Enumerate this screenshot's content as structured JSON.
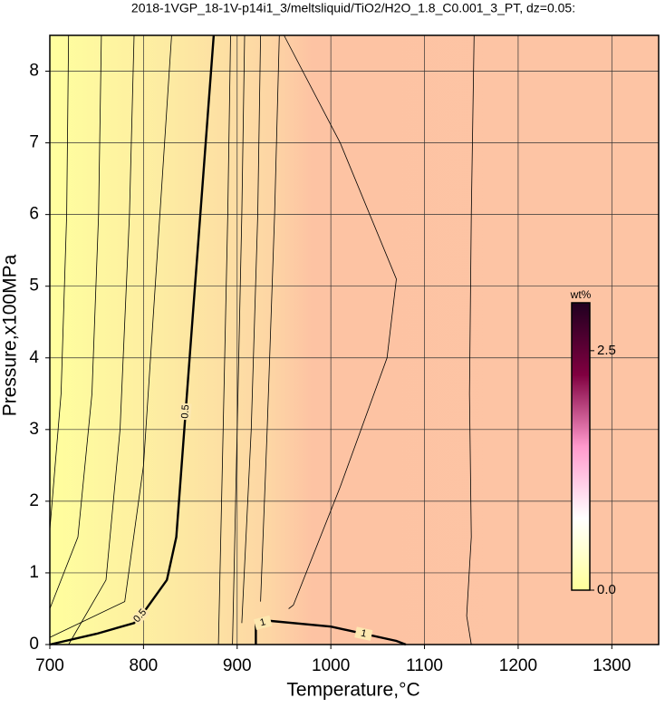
{
  "chart_data": {
    "type": "contour",
    "title": "2018-1VGP_18-1V-p14i1_3/meltsliquid/TiO2/H2O_1.8_C0.001_3_PT, dz=0.05:",
    "x_label": "Temperature,°C",
    "y_label": "Pressure,x100MPa",
    "xlim": [
      700,
      1350
    ],
    "ylim": [
      0,
      8.5
    ],
    "xticks": [
      700,
      800,
      900,
      1000,
      1100,
      1200,
      1300
    ],
    "yticks": [
      0,
      1,
      2,
      3,
      4,
      5,
      6,
      7,
      8
    ],
    "grid": true,
    "line_color": "#000000",
    "contours": [
      {
        "level": 0.1,
        "x": [
          700,
          712,
          718,
          720
        ],
        "y": [
          1.6,
          3.5,
          6,
          8.5
        ]
      },
      {
        "level": 0.2,
        "x": [
          700,
          730,
          745,
          752,
          755
        ],
        "y": [
          0.5,
          1.5,
          3.5,
          6,
          8.5
        ]
      },
      {
        "level": 0.3,
        "x": [
          720,
          760,
          775,
          785,
          790
        ],
        "y": [
          0,
          0.9,
          3,
          6,
          8.5
        ]
      },
      {
        "level": 0.4,
        "x": [
          700,
          780,
          800,
          815,
          830
        ],
        "y": [
          0.1,
          0.6,
          2.5,
          5.5,
          8.5
        ]
      },
      {
        "level": 0.5,
        "bold": true,
        "labeled": true,
        "x": [
          700,
          750,
          790,
          803,
          825,
          835,
          855,
          875
        ],
        "y": [
          0,
          0.15,
          0.3,
          0.5,
          0.9,
          1.5,
          5,
          8.5
        ]
      },
      {
        "level": 0.6,
        "x": [
          880,
          885,
          890,
          893
        ],
        "y": [
          0,
          3,
          6,
          8.5
        ]
      },
      {
        "level": 0.7,
        "x": [
          895,
          900,
          905,
          908
        ],
        "y": [
          0,
          3,
          6,
          8.5
        ]
      },
      {
        "level": 0.8,
        "x": [
          905,
          915,
          922,
          925
        ],
        "y": [
          0.3,
          3,
          6,
          8.5
        ]
      },
      {
        "level": 0.9,
        "x": [
          925,
          932,
          940,
          945
        ],
        "y": [
          0.6,
          3,
          6,
          8.5
        ]
      },
      {
        "level": 1,
        "bold": true,
        "labeled": true,
        "x": [
          920,
          920,
          935,
          1000,
          1070,
          1080
        ],
        "y": [
          0,
          0.28,
          0.33,
          0.25,
          0.05,
          0
        ]
      },
      {
        "level": 1.05,
        "x": [
          950,
          1010,
          1070,
          1060,
          1010,
          960,
          955
        ],
        "y": [
          8.5,
          7,
          5.1,
          4,
          2.2,
          0.55,
          0.5
        ]
      },
      {
        "level": 1.1,
        "x": [
          1153,
          1150,
          1148,
          1150,
          1145,
          1150
        ],
        "y": [
          8.5,
          6,
          3.5,
          1.5,
          0.4,
          0
        ]
      }
    ],
    "colorbar": {
      "label": "wt%",
      "lim": [
        0,
        3
      ],
      "ticks": [
        {
          "value": 0,
          "label": "0.0"
        },
        2.5
      ],
      "colors": [
        "#ffff99",
        "#ffffff",
        "#ff99cc",
        "#800040",
        "#200020"
      ]
    }
  }
}
